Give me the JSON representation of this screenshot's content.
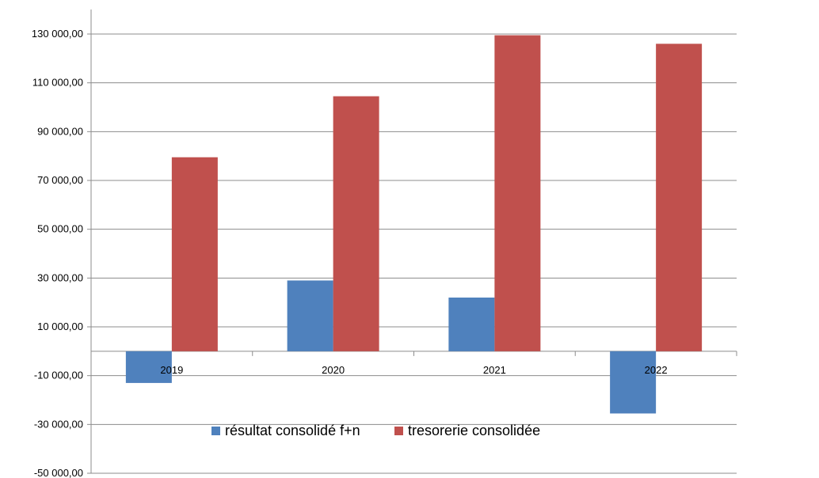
{
  "chart_data": {
    "type": "bar",
    "title": "",
    "xlabel": "",
    "ylabel": "",
    "categories": [
      "2019",
      "2020",
      "2021",
      "2022"
    ],
    "series": [
      {
        "name": "résultat consolidé f+n",
        "color": "#4f81bd",
        "values": [
          -13000,
          29000,
          22000,
          -25500
        ]
      },
      {
        "name": "tresorerie consolidée",
        "color": "#c0504d",
        "values": [
          79500,
          104500,
          129500,
          126000
        ]
      }
    ],
    "ylim": [
      -50000,
      140000
    ],
    "yticks": [
      -50000,
      -30000,
      -10000,
      10000,
      30000,
      50000,
      70000,
      90000,
      110000,
      130000
    ],
    "ytick_labels": [
      "-50 000,00",
      "-30 000,00",
      "-10 000,00",
      "10 000,00",
      "30 000,00",
      "50 000,00",
      "70 000,00",
      "90 000,00",
      "110 000,00",
      "130 000,00"
    ],
    "grid": true,
    "legend_position": "bottom"
  }
}
